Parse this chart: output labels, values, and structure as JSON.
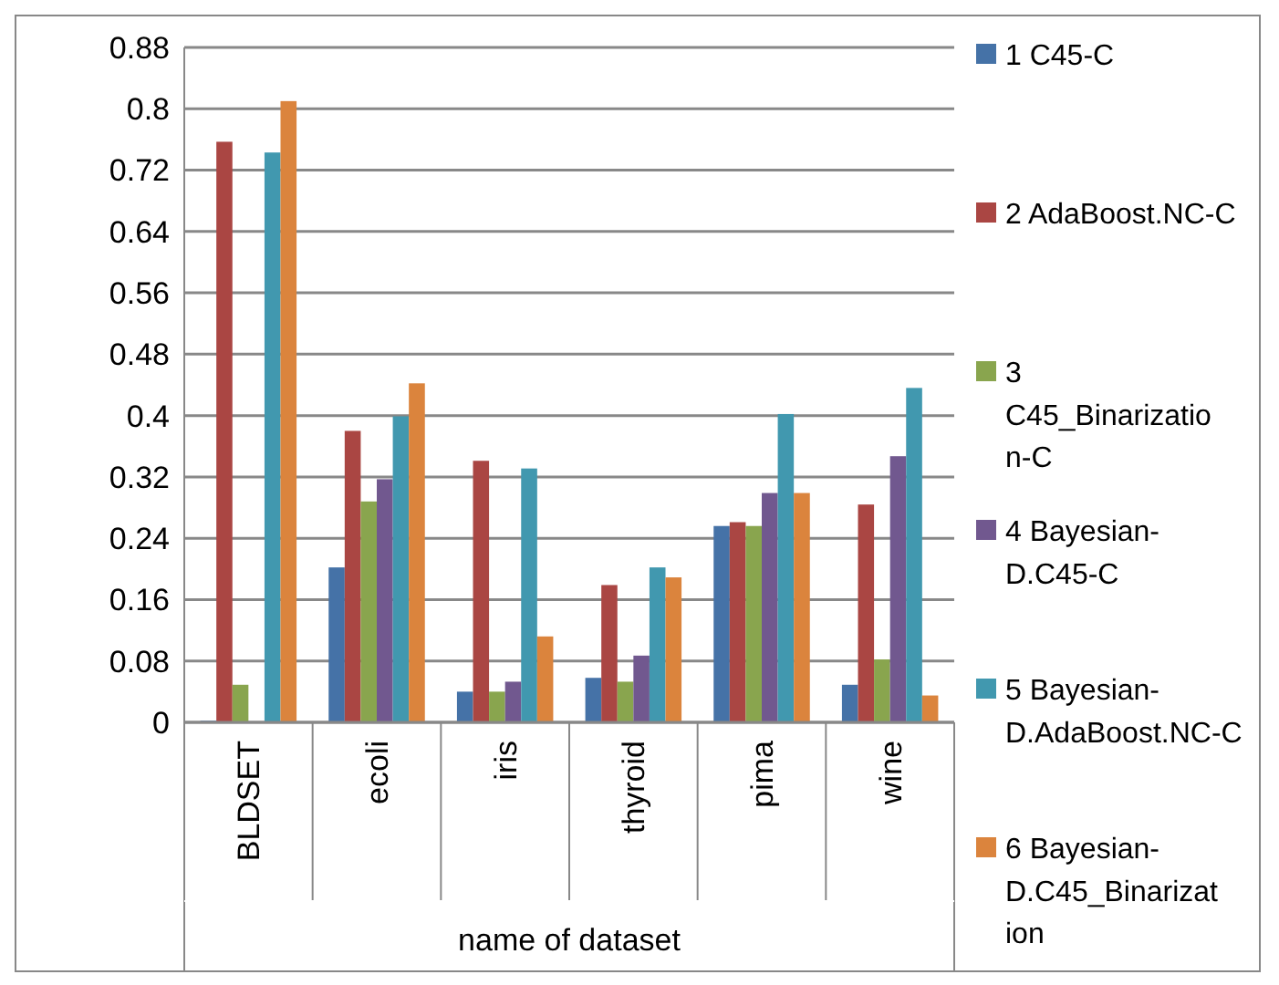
{
  "chart_data": {
    "type": "bar",
    "xlabel": "name of dataset",
    "categories": [
      "BLDSET",
      "ecoli",
      "iris",
      "thyroid",
      "pima",
      "wine"
    ],
    "series": [
      {
        "name": "1 C45-C",
        "color": "#4572a7",
        "values": [
          0.002,
          0.202,
          0.04,
          0.058,
          0.256,
          0.049
        ]
      },
      {
        "name": "2 AdaBoost.NC-C",
        "color": "#aa4643",
        "values": [
          0.757,
          0.38,
          0.341,
          0.179,
          0.261,
          0.284
        ]
      },
      {
        "name": "3 C45_Binarization-C",
        "color": "#89a54e",
        "values": [
          0.049,
          0.288,
          0.04,
          0.053,
          0.256,
          0.082
        ]
      },
      {
        "name": "4 Bayesian-D.C45-C",
        "color": "#71588f",
        "values": [
          null,
          0.317,
          0.053,
          0.087,
          0.299,
          0.347
        ]
      },
      {
        "name": "5 Bayesian-D.AdaBoost.NC-C",
        "color": "#4198af",
        "values": [
          0.743,
          0.399,
          0.331,
          0.202,
          0.402,
          0.436
        ]
      },
      {
        "name": "6 Bayesian-D.C45_Binarization",
        "color": "#db843d",
        "values": [
          0.81,
          0.442,
          0.112,
          0.189,
          0.299,
          0.035
        ]
      }
    ],
    "ylim": [
      0,
      0.88
    ],
    "yticks": [
      0,
      0.08,
      0.16,
      0.24,
      0.32,
      0.4,
      0.48,
      0.56,
      0.64,
      0.72,
      0.8,
      0.88
    ],
    "grid": "y",
    "legend": "right"
  }
}
